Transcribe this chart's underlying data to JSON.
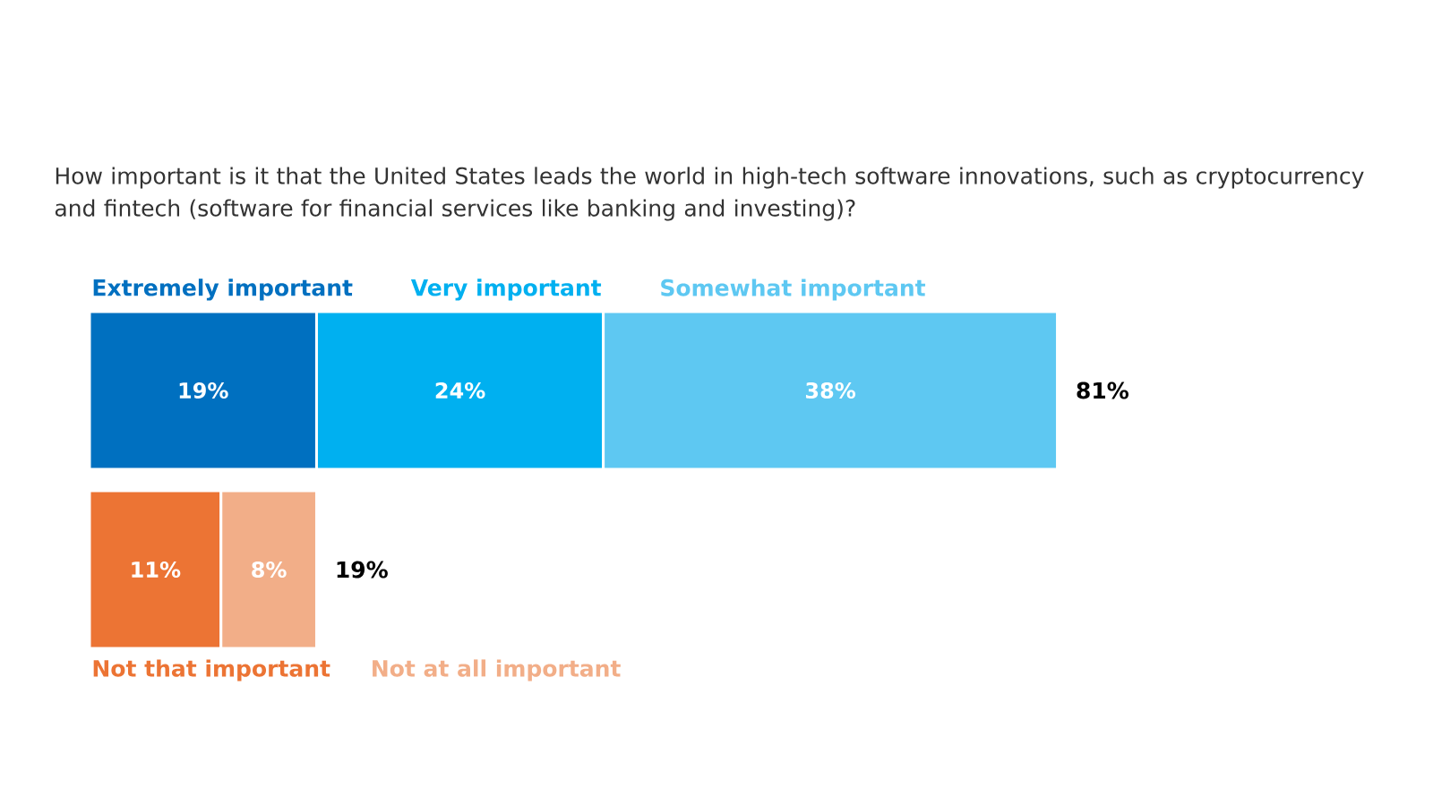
{
  "chart_data": {
    "type": "bar",
    "orientation": "horizontal",
    "stacked": true,
    "title": "How important is it that the United States leads the world in high-tech software innovations, such as cryptocurrency and fintech (software for financial services like banking and investing)?",
    "categories": [
      null,
      null
    ],
    "tick_labels": false,
    "grid": false,
    "series": [
      {
        "name": "Extremely important",
        "color": "#0070c0",
        "values": [
          19,
          null
        ],
        "value_labels": [
          "19%",
          null
        ]
      },
      {
        "name": "Very important",
        "color": "#00b0f0",
        "values": [
          24,
          null
        ],
        "value_labels": [
          "24%",
          null
        ]
      },
      {
        "name": "Somewhat important",
        "color": "#5ec8f2",
        "values": [
          38,
          null
        ],
        "value_labels": [
          "38%",
          null
        ]
      },
      {
        "name": "Not that important",
        "color": "#ec7434",
        "values": [
          null,
          11
        ],
        "value_labels": [
          null,
          "11%"
        ]
      },
      {
        "name": "Not at all important",
        "color": "#f2ae88",
        "values": [
          null,
          8
        ],
        "value_labels": [
          null,
          "8%"
        ]
      }
    ],
    "totals": [
      "81%",
      "19%"
    ]
  }
}
